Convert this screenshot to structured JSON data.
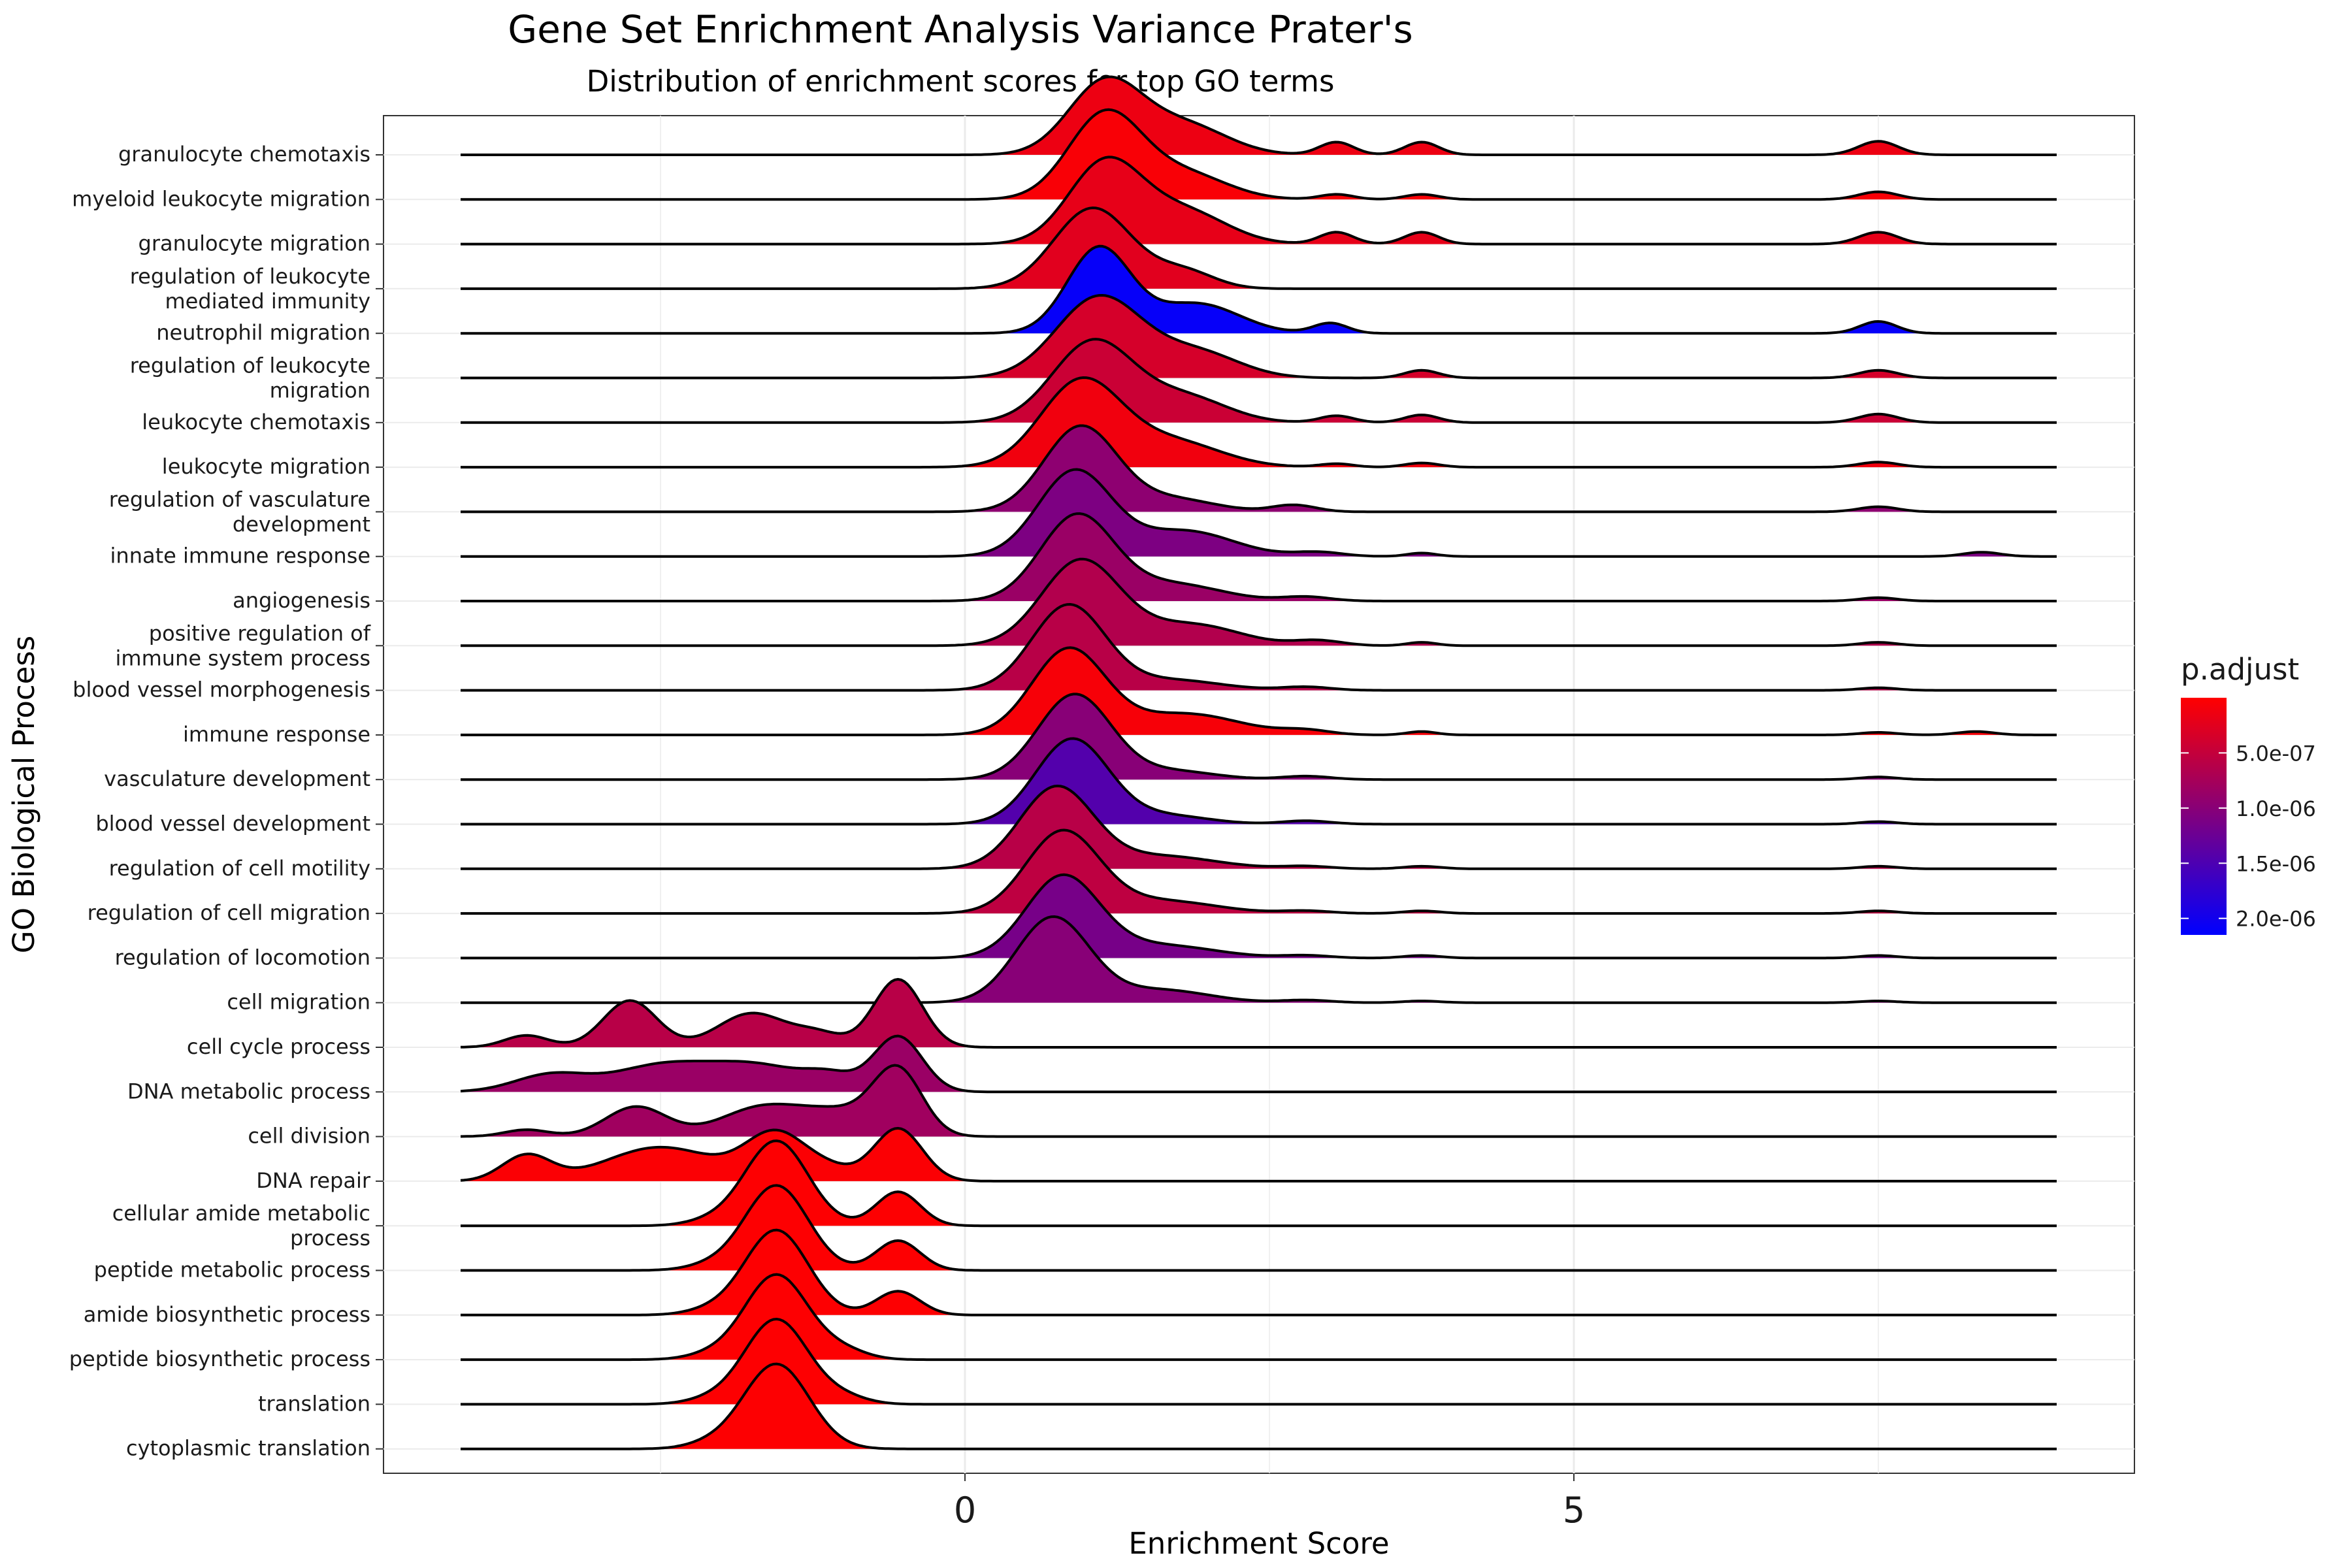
{
  "chart_data": {
    "type": "ridgeline",
    "title": "Gene Set Enrichment Analysis Variance Prater's",
    "subtitle": "Distribution of enrichment scores for top GO terms",
    "xlabel": "Enrichment Score",
    "ylabel": "GO Biological Process",
    "x_ticks": [
      0,
      5
    ],
    "x_tick_labels": [
      "0",
      "5"
    ],
    "xlim": [
      -4.8,
      9.6
    ],
    "grid": true,
    "legend": {
      "title": "p.adjust",
      "position": "right",
      "scale": "continuous",
      "low_color": "#FF0000",
      "high_color": "#0000FF",
      "range": [
        0.0,
        2.15e-06
      ],
      "ticks": [
        5e-07,
        1e-06,
        1.5e-06,
        2e-06
      ],
      "tick_labels": [
        "5.0e-07",
        "1.0e-06",
        "1.5e-06",
        "2.0e-06"
      ]
    },
    "series": [
      {
        "name": "granulocyte chemotaxis",
        "label_lines": [
          "granulocyte chemotaxis"
        ],
        "p_adjust": 1.5e-07,
        "peaks": [
          [
            1.15,
            0.85,
            0.3
          ],
          [
            1.8,
            0.35,
            0.35
          ],
          [
            3.05,
            0.15,
            0.14
          ],
          [
            3.75,
            0.15,
            0.14
          ],
          [
            7.5,
            0.16,
            0.16
          ]
        ]
      },
      {
        "name": "myeloid leukocyte migration",
        "label_lines": [
          "myeloid leukocyte migration"
        ],
        "p_adjust": 5e-08,
        "peaks": [
          [
            1.15,
            1.0,
            0.3
          ],
          [
            1.8,
            0.3,
            0.35
          ],
          [
            3.05,
            0.06,
            0.14
          ],
          [
            3.75,
            0.06,
            0.14
          ],
          [
            7.5,
            0.09,
            0.16
          ]
        ]
      },
      {
        "name": "granulocyte migration",
        "label_lines": [
          "granulocyte migration"
        ],
        "p_adjust": 2e-07,
        "peaks": [
          [
            1.15,
            0.95,
            0.3
          ],
          [
            1.8,
            0.38,
            0.35
          ],
          [
            3.05,
            0.14,
            0.14
          ],
          [
            3.75,
            0.14,
            0.14
          ],
          [
            7.5,
            0.14,
            0.16
          ]
        ]
      },
      {
        "name": "regulation of leukocyte mediated immunity",
        "label_lines": [
          "regulation of leukocyte",
          "mediated immunity"
        ],
        "p_adjust": 2.5e-07,
        "peaks": [
          [
            1.05,
            0.95,
            0.32
          ],
          [
            1.8,
            0.2,
            0.25
          ]
        ]
      },
      {
        "name": "neutrophil migration",
        "label_lines": [
          "neutrophil migration"
        ],
        "p_adjust": 2.1e-06,
        "peaks": [
          [
            1.1,
            1.0,
            0.26
          ],
          [
            1.9,
            0.35,
            0.35
          ],
          [
            3.0,
            0.12,
            0.14
          ],
          [
            7.5,
            0.14,
            0.15
          ]
        ]
      },
      {
        "name": "regulation of leukocyte migration",
        "label_lines": [
          "regulation of leukocyte",
          "migration"
        ],
        "p_adjust": 3.5e-07,
        "peaks": [
          [
            1.1,
            0.95,
            0.35
          ],
          [
            1.9,
            0.3,
            0.35
          ],
          [
            3.75,
            0.09,
            0.14
          ],
          [
            7.5,
            0.09,
            0.16
          ]
        ]
      },
      {
        "name": "leukocyte chemotaxis",
        "label_lines": [
          "leukocyte chemotaxis"
        ],
        "p_adjust": 4.5e-07,
        "peaks": [
          [
            1.05,
            0.95,
            0.33
          ],
          [
            1.8,
            0.3,
            0.35
          ],
          [
            3.05,
            0.08,
            0.14
          ],
          [
            3.75,
            0.09,
            0.14
          ],
          [
            7.5,
            0.1,
            0.16
          ]
        ]
      },
      {
        "name": "leukocyte migration",
        "label_lines": [
          "leukocyte migration"
        ],
        "p_adjust": 1.2e-07,
        "peaks": [
          [
            0.95,
            1.0,
            0.33
          ],
          [
            1.7,
            0.3,
            0.4
          ],
          [
            3.05,
            0.04,
            0.14
          ],
          [
            3.75,
            0.05,
            0.14
          ],
          [
            7.5,
            0.06,
            0.16
          ]
        ]
      },
      {
        "name": "regulation of vasculature development",
        "label_lines": [
          "regulation of vasculature",
          "development"
        ],
        "p_adjust": 9.5e-07,
        "peaks": [
          [
            0.95,
            1.0,
            0.3
          ],
          [
            1.7,
            0.15,
            0.35
          ],
          [
            2.7,
            0.08,
            0.18
          ],
          [
            7.5,
            0.06,
            0.16
          ]
        ]
      },
      {
        "name": "innate immune response",
        "label_lines": [
          "innate immune response"
        ],
        "p_adjust": 1.1e-06,
        "peaks": [
          [
            0.9,
            1.0,
            0.3
          ],
          [
            1.8,
            0.3,
            0.4
          ],
          [
            2.9,
            0.05,
            0.2
          ],
          [
            3.75,
            0.04,
            0.12
          ],
          [
            8.35,
            0.05,
            0.15
          ]
        ]
      },
      {
        "name": "angiogenesis",
        "label_lines": [
          "angiogenesis"
        ],
        "p_adjust": 8.5e-07,
        "peaks": [
          [
            0.92,
            1.0,
            0.3
          ],
          [
            1.7,
            0.2,
            0.4
          ],
          [
            2.8,
            0.05,
            0.2
          ],
          [
            7.5,
            0.04,
            0.15
          ]
        ]
      },
      {
        "name": "positive regulation of immune system process",
        "label_lines": [
          "positive regulation of",
          "immune system process"
        ],
        "p_adjust": 6.5e-07,
        "peaks": [
          [
            0.95,
            1.0,
            0.32
          ],
          [
            1.85,
            0.25,
            0.4
          ],
          [
            2.9,
            0.06,
            0.2
          ],
          [
            3.75,
            0.04,
            0.12
          ],
          [
            7.5,
            0.04,
            0.15
          ]
        ]
      },
      {
        "name": "blood vessel morphogenesis",
        "label_lines": [
          "blood vessel morphogenesis"
        ],
        "p_adjust": 6e-07,
        "peaks": [
          [
            0.85,
            1.0,
            0.3
          ],
          [
            1.7,
            0.12,
            0.4
          ],
          [
            2.8,
            0.04,
            0.2
          ],
          [
            7.5,
            0.03,
            0.15
          ]
        ]
      },
      {
        "name": "immune response",
        "label_lines": [
          "immune response"
        ],
        "p_adjust": 7e-08,
        "peaks": [
          [
            0.85,
            1.0,
            0.3
          ],
          [
            1.8,
            0.25,
            0.45
          ],
          [
            2.8,
            0.05,
            0.2
          ],
          [
            3.75,
            0.04,
            0.12
          ],
          [
            7.5,
            0.03,
            0.15
          ],
          [
            8.3,
            0.04,
            0.15
          ]
        ]
      },
      {
        "name": "vasculature development",
        "label_lines": [
          "vasculature development"
        ],
        "p_adjust": 1e-06,
        "peaks": [
          [
            0.9,
            1.0,
            0.3
          ],
          [
            1.7,
            0.1,
            0.35
          ],
          [
            2.8,
            0.04,
            0.2
          ],
          [
            7.5,
            0.03,
            0.15
          ]
        ]
      },
      {
        "name": "blood vessel development",
        "label_lines": [
          "blood vessel development"
        ],
        "p_adjust": 1.45e-06,
        "peaks": [
          [
            0.88,
            1.0,
            0.3
          ],
          [
            1.65,
            0.1,
            0.35
          ],
          [
            2.8,
            0.04,
            0.2
          ],
          [
            7.5,
            0.03,
            0.15
          ]
        ]
      },
      {
        "name": "regulation of cell motility",
        "label_lines": [
          "regulation of cell motility"
        ],
        "p_adjust": 6e-07,
        "peaks": [
          [
            0.75,
            0.95,
            0.3
          ],
          [
            1.6,
            0.15,
            0.45
          ],
          [
            2.8,
            0.03,
            0.2
          ],
          [
            3.75,
            0.03,
            0.15
          ],
          [
            7.5,
            0.03,
            0.15
          ]
        ]
      },
      {
        "name": "regulation of cell migration",
        "label_lines": [
          "regulation of cell migration"
        ],
        "p_adjust": 5.5e-07,
        "peaks": [
          [
            0.8,
            0.95,
            0.3
          ],
          [
            1.6,
            0.15,
            0.45
          ],
          [
            2.8,
            0.03,
            0.2
          ],
          [
            3.75,
            0.03,
            0.15
          ],
          [
            7.5,
            0.03,
            0.15
          ]
        ]
      },
      {
        "name": "regulation of locomotion",
        "label_lines": [
          "regulation of locomotion"
        ],
        "p_adjust": 1.15e-06,
        "peaks": [
          [
            0.8,
            0.95,
            0.3
          ],
          [
            1.6,
            0.15,
            0.45
          ],
          [
            2.8,
            0.03,
            0.2
          ],
          [
            3.75,
            0.03,
            0.15
          ],
          [
            7.5,
            0.03,
            0.15
          ]
        ]
      },
      {
        "name": "cell migration",
        "label_lines": [
          "cell migration"
        ],
        "p_adjust": 1e-06,
        "peaks": [
          [
            0.72,
            1.0,
            0.3
          ],
          [
            1.6,
            0.15,
            0.4
          ],
          [
            2.8,
            0.03,
            0.2
          ],
          [
            3.75,
            0.02,
            0.15
          ],
          [
            7.5,
            0.02,
            0.15
          ]
        ]
      },
      {
        "name": "cell cycle process",
        "label_lines": [
          "cell cycle process"
        ],
        "p_adjust": 6e-07,
        "peaks": [
          [
            -3.6,
            0.14,
            0.18
          ],
          [
            -2.75,
            0.55,
            0.22
          ],
          [
            -1.75,
            0.4,
            0.28
          ],
          [
            -0.55,
            0.8,
            0.2
          ],
          [
            -1.2,
            0.15,
            0.2
          ]
        ]
      },
      {
        "name": "DNA metabolic process",
        "label_lines": [
          "DNA metabolic process"
        ],
        "p_adjust": 8.5e-07,
        "peaks": [
          [
            -3.4,
            0.2,
            0.3
          ],
          [
            -2.5,
            0.3,
            0.4
          ],
          [
            -1.7,
            0.3,
            0.4
          ],
          [
            -0.55,
            0.65,
            0.2
          ],
          [
            -1.1,
            0.15,
            0.2
          ]
        ]
      },
      {
        "name": "cell division",
        "label_lines": [
          "cell division"
        ],
        "p_adjust": 8e-07,
        "peaks": [
          [
            -3.6,
            0.08,
            0.18
          ],
          [
            -2.7,
            0.35,
            0.25
          ],
          [
            -1.65,
            0.35,
            0.35
          ],
          [
            -0.55,
            0.75,
            0.2
          ],
          [
            -1.0,
            0.25,
            0.3
          ]
        ]
      },
      {
        "name": "DNA repair",
        "label_lines": [
          "DNA repair"
        ],
        "p_adjust": 3e-08,
        "peaks": [
          [
            -3.6,
            0.3,
            0.2
          ],
          [
            -2.5,
            0.4,
            0.45
          ],
          [
            -1.55,
            0.55,
            0.25
          ],
          [
            -0.55,
            0.62,
            0.2
          ],
          [
            -1.1,
            0.12,
            0.2
          ]
        ]
      },
      {
        "name": "cellular amide metabolic process",
        "label_lines": [
          "cellular amide metabolic",
          "process"
        ],
        "p_adjust": 2e-08,
        "peaks": [
          [
            -1.55,
            1.0,
            0.26
          ],
          [
            -0.55,
            0.4,
            0.18
          ],
          [
            -2.1,
            0.05,
            0.2
          ]
        ]
      },
      {
        "name": "peptide metabolic process",
        "label_lines": [
          "peptide metabolic process"
        ],
        "p_adjust": 2e-08,
        "peaks": [
          [
            -1.55,
            1.0,
            0.26
          ],
          [
            -0.55,
            0.35,
            0.18
          ],
          [
            -2.1,
            0.05,
            0.2
          ]
        ]
      },
      {
        "name": "amide biosynthetic process",
        "label_lines": [
          "amide biosynthetic process"
        ],
        "p_adjust": 2e-08,
        "peaks": [
          [
            -1.55,
            1.0,
            0.26
          ],
          [
            -0.55,
            0.28,
            0.18
          ],
          [
            -2.1,
            0.05,
            0.2
          ]
        ]
      },
      {
        "name": "peptide biosynthetic process",
        "label_lines": [
          "peptide biosynthetic process"
        ],
        "p_adjust": 2e-08,
        "peaks": [
          [
            -1.55,
            1.0,
            0.26
          ],
          [
            -1.0,
            0.1,
            0.2
          ],
          [
            -2.1,
            0.05,
            0.2
          ]
        ]
      },
      {
        "name": "translation",
        "label_lines": [
          "translation"
        ],
        "p_adjust": 2e-08,
        "peaks": [
          [
            -1.55,
            1.0,
            0.26
          ],
          [
            -1.0,
            0.08,
            0.2
          ],
          [
            -2.1,
            0.05,
            0.2
          ]
        ]
      },
      {
        "name": "cytoplasmic translation",
        "label_lines": [
          "cytoplasmic translation"
        ],
        "p_adjust": 2e-08,
        "peaks": [
          [
            -1.55,
            1.0,
            0.27
          ],
          [
            -2.1,
            0.05,
            0.2
          ]
        ]
      }
    ]
  }
}
